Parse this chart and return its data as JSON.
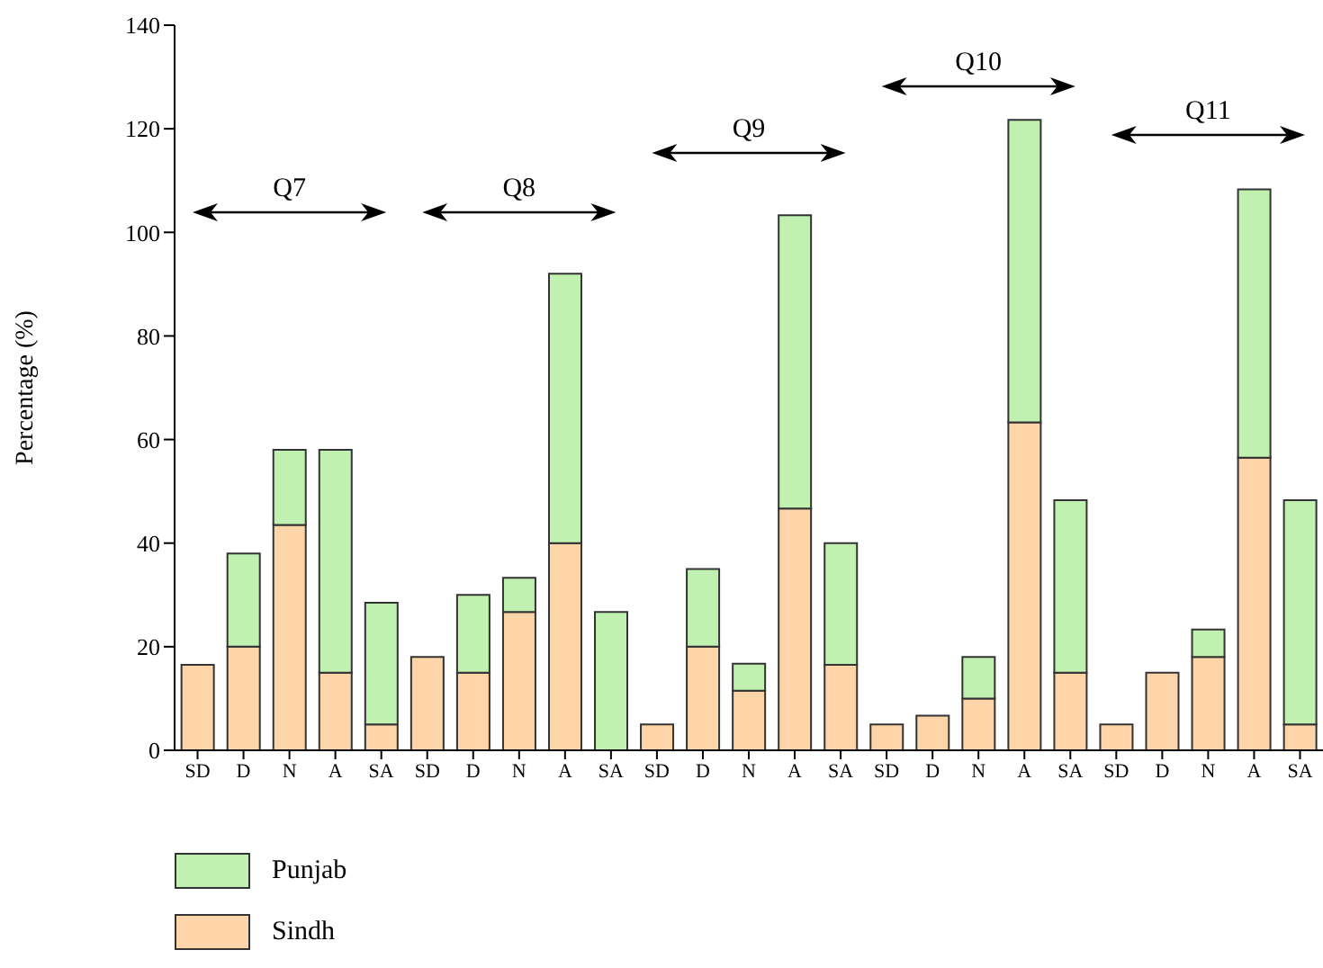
{
  "chart_data": {
    "type": "bar",
    "stacked": true,
    "ylabel": "Percentage (%)",
    "categories": [
      "SD",
      "D",
      "N",
      "A",
      "SA",
      "SD",
      "D",
      "N",
      "A",
      "SA",
      "SD",
      "D",
      "N",
      "A",
      "SA",
      "SD",
      "D",
      "N",
      "A",
      "SA",
      "SD",
      "D",
      "N",
      "A",
      "SA"
    ],
    "series": [
      {
        "name": "Sindh",
        "color": "#fdd5a8",
        "values": [
          16.5,
          20,
          43.5,
          15,
          5,
          18,
          15,
          26.7,
          40,
          0,
          5,
          20,
          11.5,
          46.7,
          16.5,
          5,
          6.7,
          10,
          63.3,
          15,
          5,
          15,
          18,
          56.5,
          5
        ]
      },
      {
        "name": "Punjab",
        "color": "#c0f1b0",
        "values": [
          0,
          18,
          14.5,
          43,
          23.5,
          0,
          15,
          6.6,
          52,
          26.7,
          0,
          15,
          5.2,
          56.6,
          23.5,
          0,
          0,
          8,
          58.4,
          33.3,
          0,
          0,
          5.3,
          51.8,
          43.3
        ]
      }
    ],
    "ylim": [
      0,
      140
    ],
    "yticks": [
      0,
      20,
      40,
      60,
      80,
      100,
      120,
      140
    ],
    "grid": false,
    "legend": "bottom left",
    "annotations": [
      "Q7",
      "Q8",
      "Q9",
      "Q10",
      "Q11"
    ]
  }
}
